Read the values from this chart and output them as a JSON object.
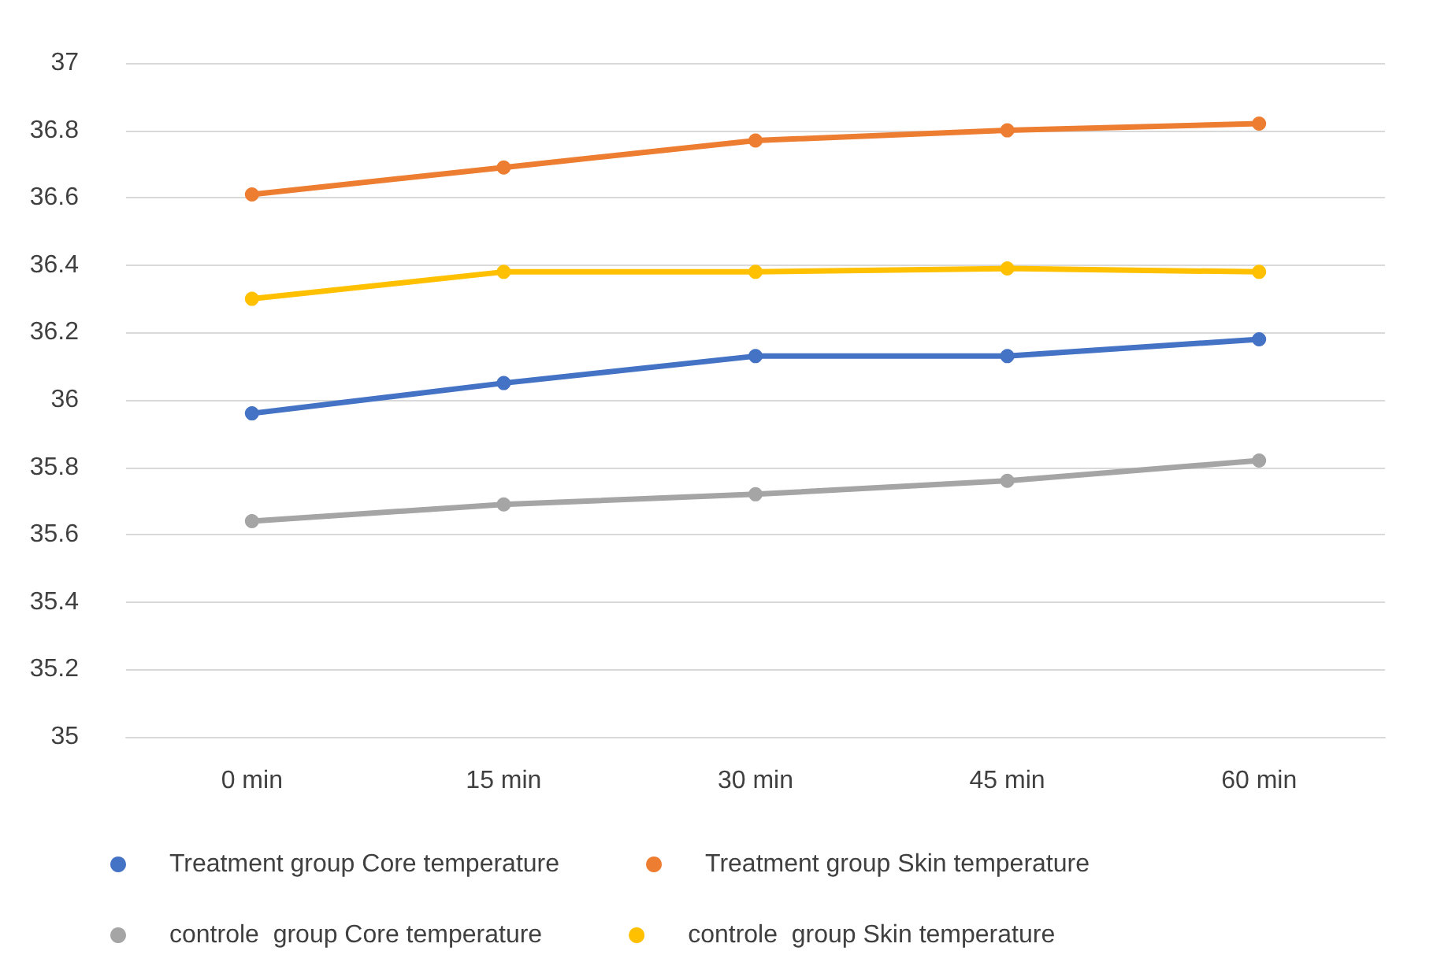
{
  "chart_data": {
    "type": "line",
    "categories": [
      "0 min",
      "15 min",
      "30 min",
      "45 min",
      "60 min"
    ],
    "series": [
      {
        "name": "Treatment group Core temperature",
        "color": "#4472c4",
        "values": [
          35.96,
          36.05,
          36.13,
          36.13,
          36.18
        ]
      },
      {
        "name": "Treatment group Skin temperature",
        "color": "#ed7d31",
        "values": [
          36.61,
          36.69,
          36.77,
          36.8,
          36.82
        ]
      },
      {
        "name": "controle  group Core temperature",
        "color": "#a5a5a5",
        "values": [
          35.64,
          35.69,
          35.72,
          35.76,
          35.82
        ]
      },
      {
        "name": "controle  group Skin temperature",
        "color": "#ffc000",
        "values": [
          36.3,
          36.38,
          36.38,
          36.39,
          36.38
        ]
      }
    ],
    "ylim": [
      35,
      37
    ],
    "yticks": [
      35,
      35.2,
      35.4,
      35.6,
      35.8,
      36,
      36.2,
      36.4,
      36.6,
      36.8,
      37
    ],
    "grid": "y",
    "legend": "bottom",
    "marker": "circle",
    "line_style": "solid"
  }
}
